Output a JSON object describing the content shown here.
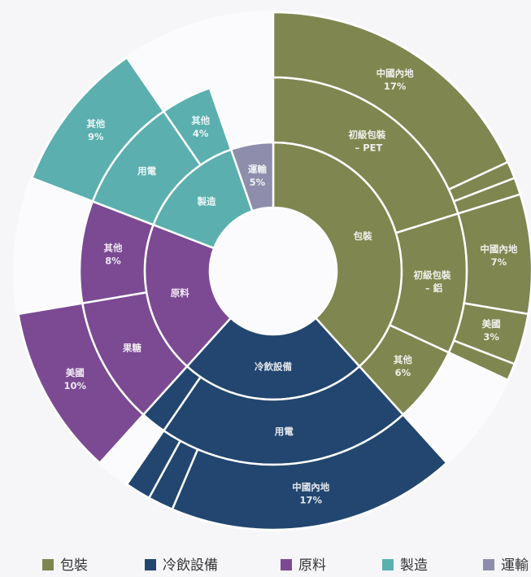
{
  "chart_data": {
    "type": "sunburst",
    "nodes": [
      {
        "name": "包裝",
        "color": "#7f8650",
        "children": [
          {
            "name": "初級包裝 – PET",
            "children": [
              {
                "name": "中國內地",
                "value": 17,
                "value_label": "17%"
              },
              {
                "name": null,
                "value": 1
              },
              {
                "name": null,
                "value": 1
              }
            ]
          },
          {
            "name": "初級包裝 – 鋁",
            "children": [
              {
                "name": "中國內地",
                "value": 7,
                "value_label": "7%"
              },
              {
                "name": "美國",
                "value": 3,
                "value_label": "3%"
              },
              {
                "name": null,
                "value": 1
              }
            ]
          },
          {
            "name": "其他",
            "value": 6,
            "value_label": "6%"
          }
        ]
      },
      {
        "name": "冷飲設備",
        "color": "#22466f",
        "children": [
          {
            "name": "用電",
            "children": [
              {
                "name": "中國內地",
                "value": 17,
                "value_label": "17%"
              },
              {
                "name": null,
                "value": 1.5
              },
              {
                "name": null,
                "value": 1.5
              }
            ]
          },
          {
            "name": null,
            "value": 2
          }
        ]
      },
      {
        "name": "原料",
        "color": "#7b4a93",
        "children": [
          {
            "name": "果糖",
            "children": [
              {
                "name": "美國",
                "value": 10,
                "value_label": "10%"
              }
            ]
          },
          {
            "name": "其他",
            "value": 8,
            "value_label": "8%"
          }
        ]
      },
      {
        "name": "製造",
        "color": "#5bafaf",
        "children": [
          {
            "name": "用電",
            "children": [
              {
                "name": "其他",
                "value": 9,
                "value_label": "9%"
              }
            ]
          },
          {
            "name": "其他",
            "value": 4,
            "value_label": "4%"
          }
        ]
      },
      {
        "name": "運輸",
        "color": "#8e8dab",
        "value": 5,
        "value_label": "5%"
      }
    ]
  }
}
